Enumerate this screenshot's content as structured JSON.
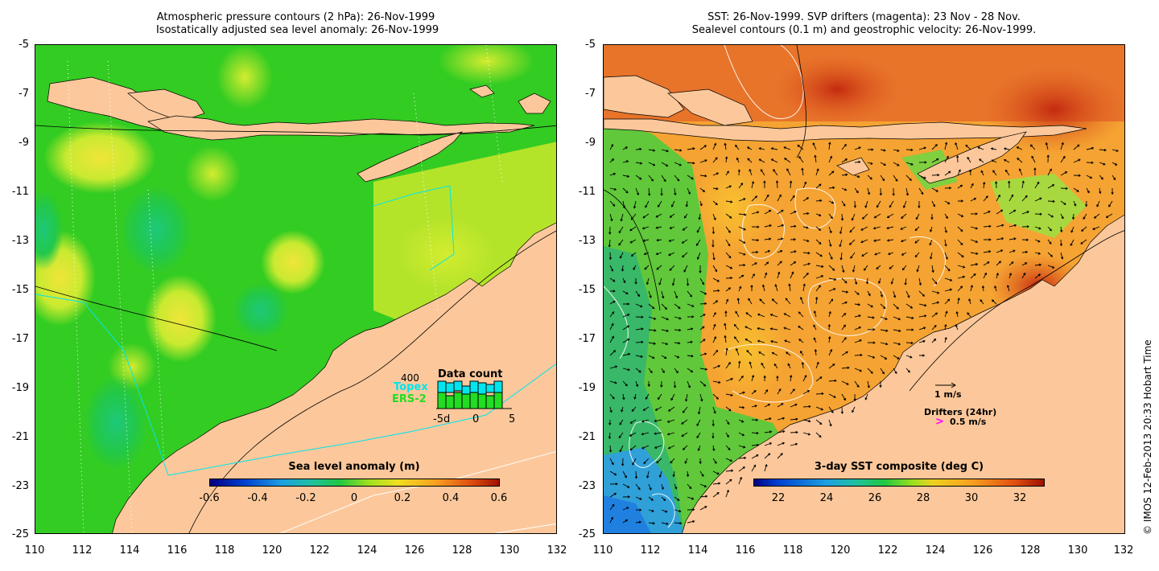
{
  "left_title": "Atmospheric pressure contours (2 hPa): 26-Nov-1999\n Isostatically adjusted sea level anomaly: 26-Nov-1999",
  "right_title": "SST: 26-Nov-1999. SVP drifters (magenta): 23 Nov - 28 Nov.\nSealevel contours (0.1 m) and geostrophic velocity: 26-Nov-1999.",
  "y_ticks": [
    "-5",
    "-7",
    "-9",
    "-11",
    "-13",
    "-15",
    "-17",
    "-19",
    "-21",
    "-23",
    "-25"
  ],
  "x_ticks": [
    "110",
    "112",
    "114",
    "116",
    "118",
    "120",
    "122",
    "124",
    "126",
    "128",
    "130",
    "132"
  ],
  "lon_range": [
    110,
    132
  ],
  "lat_range": [
    -25,
    -5
  ],
  "left_colorbar": {
    "title": "Sea level anomaly (m)",
    "ticks": [
      "-0.6",
      "-0.4",
      "-0.2",
      "0",
      "0.2",
      "0.4",
      "0.6"
    ],
    "range": [
      -0.6,
      0.6
    ]
  },
  "right_colorbar": {
    "title": "3-day SST composite (deg C)",
    "ticks": [
      "22",
      "24",
      "26",
      "28",
      "30",
      "32"
    ],
    "range": [
      21,
      33
    ]
  },
  "data_count": {
    "title": "Data count",
    "max_label": "400",
    "topex_label": "Topex",
    "ers_label": "ERS-2",
    "x_min_label": "-5d",
    "x_mid_label": "0",
    "x_max_label": "5",
    "topex_color": "#00e5ee",
    "ers_color": "#22dd22"
  },
  "velocity_scale_label": "1 m/s",
  "drifters_label": "Drifters (24hr)",
  "drifter_scale_label": "0.5 m/s",
  "drifter_symbol": ">",
  "drifter_color": "#ff00ff",
  "credit": "© IMOS 12-Feb-2013 20:33 Hobart Time",
  "colors": {
    "land": "#fcc89b",
    "sla_background": "#33cc22",
    "sst_background": "#f5a332"
  }
}
